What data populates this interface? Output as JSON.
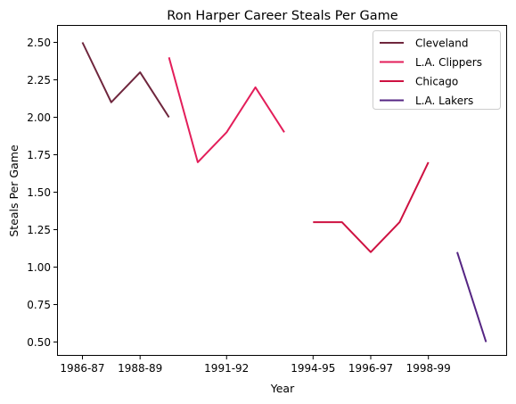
{
  "chart_data": {
    "type": "line",
    "title": "Ron Harper Career Steals Per Game",
    "xlabel": "Year",
    "ylabel": "Steals Per Game",
    "ylim": [
      0.4,
      2.6
    ],
    "x_tick_labels": [
      "1986-87",
      "1988-89",
      "1991-92",
      "1994-95",
      "1996-97",
      "1998-99"
    ],
    "y_tick_labels": [
      "0.50",
      "0.75",
      "1.00",
      "1.25",
      "1.50",
      "1.75",
      "2.00",
      "2.25",
      "2.50"
    ],
    "y_ticks": [
      0.5,
      0.75,
      1.0,
      1.25,
      1.5,
      1.75,
      2.0,
      2.25,
      2.5
    ],
    "grid": false,
    "legend_position": "top-right",
    "series": [
      {
        "name": "Cleveland",
        "color": "#6f263d",
        "x": [
          "1986-87",
          "1987-88",
          "1988-89",
          "1989-90"
        ],
        "values": [
          2.5,
          2.1,
          2.3,
          2.0
        ]
      },
      {
        "name": "L.A. Clippers",
        "color": "#e31e5a",
        "x": [
          "1989-90",
          "1990-91",
          "1991-92",
          "1992-93",
          "1993-94"
        ],
        "values": [
          2.4,
          1.7,
          1.9,
          2.2,
          1.9
        ]
      },
      {
        "name": "Chicago",
        "color": "#ce1141",
        "x": [
          "1994-95",
          "1995-96",
          "1996-97",
          "1997-98",
          "1998-99"
        ],
        "values": [
          1.3,
          1.3,
          1.1,
          1.3,
          1.7
        ]
      },
      {
        "name": "L.A. Lakers",
        "color": "#552583",
        "x": [
          "1999-00",
          "2000-01"
        ],
        "values": [
          1.1,
          0.5
        ]
      }
    ]
  }
}
